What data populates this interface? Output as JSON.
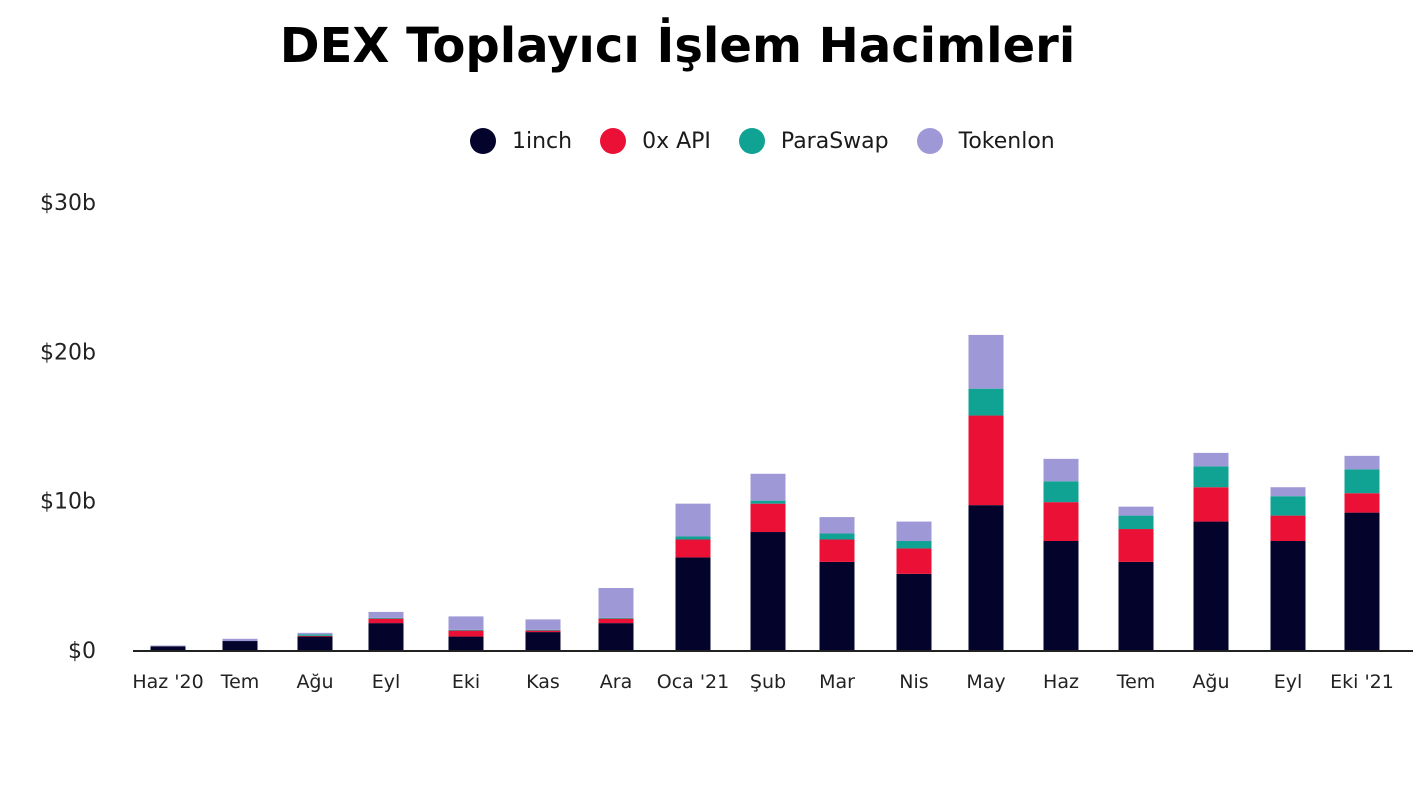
{
  "chart_data": {
    "type": "bar",
    "stacked": true,
    "title": "DEX Toplayıcı İşlem Hacimleri",
    "categories": [
      "Haz '20",
      "Tem",
      "Ağu",
      "Eyl",
      "Eki",
      "Kas",
      "Ara",
      "Oca '21",
      "Şub",
      "Mar",
      "Nis",
      "May",
      "Haz",
      "Tem",
      "Ağu",
      "Eyl",
      "Eki '21"
    ],
    "series": [
      {
        "name": "1inch",
        "color": "#03032b",
        "values": [
          0.25,
          0.6,
          0.9,
          1.8,
          0.9,
          1.2,
          1.8,
          6.2,
          7.9,
          5.9,
          5.1,
          9.7,
          7.3,
          5.9,
          8.6,
          7.3,
          9.2
        ]
      },
      {
        "name": "0x API",
        "color": "#eb1036",
        "values": [
          0.0,
          0.0,
          0.05,
          0.3,
          0.4,
          0.1,
          0.3,
          1.2,
          1.9,
          1.5,
          1.7,
          6.0,
          2.6,
          2.2,
          2.3,
          1.7,
          1.3
        ]
      },
      {
        "name": "ParaSwap",
        "color": "#10a393",
        "values": [
          0.0,
          0.0,
          0.1,
          0.05,
          0.05,
          0.05,
          0.05,
          0.2,
          0.2,
          0.4,
          0.5,
          1.8,
          1.4,
          0.9,
          1.4,
          1.3,
          1.6
        ]
      },
      {
        "name": "Tokenlon",
        "color": "#9f98d6",
        "values": [
          0.05,
          0.15,
          0.1,
          0.4,
          0.9,
          0.7,
          2.0,
          2.2,
          1.8,
          1.1,
          1.3,
          3.6,
          1.5,
          0.6,
          0.9,
          0.6,
          0.9
        ]
      }
    ],
    "yticks": [
      "$0",
      "$10b",
      "$20b",
      "$30b"
    ],
    "ytick_values": [
      0,
      10,
      20,
      30
    ],
    "ylim": [
      0,
      30
    ],
    "legend_position": "top",
    "grid": false
  }
}
